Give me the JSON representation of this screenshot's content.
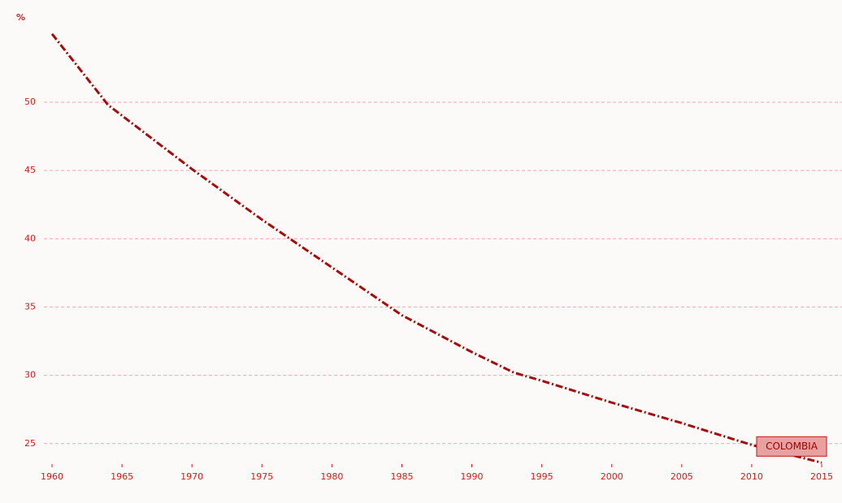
{
  "chart_data": {
    "type": "line",
    "y_label": "%",
    "x": [
      1960,
      1964,
      1970,
      1975,
      1980,
      1985,
      1990,
      1993,
      1995,
      2000,
      2005,
      2010,
      2015
    ],
    "series": [
      {
        "name": "COLOMBIA",
        "color": "#a50d0d",
        "values": [
          55.0,
          49.8,
          45.1,
          41.4,
          37.9,
          34.4,
          31.7,
          30.2,
          29.6,
          28.0,
          26.5,
          24.9,
          23.6
        ]
      }
    ],
    "xlim": [
      1960,
      2015
    ],
    "xticks": [
      1960,
      1965,
      1970,
      1975,
      1980,
      1985,
      1990,
      1995,
      2000,
      2005,
      2010,
      2015
    ],
    "ylim": [
      23.5,
      55.7
    ],
    "yticks": [
      25,
      30,
      35,
      40,
      45,
      50
    ],
    "grid": true
  }
}
